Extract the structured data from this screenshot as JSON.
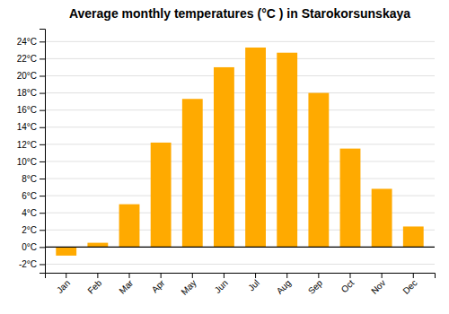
{
  "chart_data": {
    "type": "bar",
    "title": "Average monthly temperatures (°C ) in Starokorsunskaya",
    "categories": [
      "Jan",
      "Feb",
      "Mar",
      "Apr",
      "May",
      "Jun",
      "Jul",
      "Aug",
      "Sep",
      "Oct",
      "Nov",
      "Dec"
    ],
    "values": [
      -1.0,
      0.5,
      5.0,
      12.2,
      17.3,
      21.0,
      23.3,
      22.7,
      18.0,
      11.5,
      6.8,
      2.4
    ],
    "color": "#FFAA00",
    "ylim": [
      -3,
      25.5
    ],
    "yticks": [
      {
        "value": -2,
        "label": "-2°C"
      },
      {
        "value": 0,
        "label": "0°C"
      },
      {
        "value": 2,
        "label": "2°C"
      },
      {
        "value": 4,
        "label": "4°C"
      },
      {
        "value": 6,
        "label": "6°C"
      },
      {
        "value": 8,
        "label": "8°C"
      },
      {
        "value": 10,
        "label": "10°C"
      },
      {
        "value": 12,
        "label": "12°C"
      },
      {
        "value": 14,
        "label": "14°C"
      },
      {
        "value": 16,
        "label": "16°C"
      },
      {
        "value": 18,
        "label": "18°C"
      },
      {
        "value": 20,
        "label": "20°C"
      },
      {
        "value": 22,
        "label": "22°C"
      },
      {
        "value": 24,
        "label": "24°C"
      }
    ],
    "grid": true
  }
}
